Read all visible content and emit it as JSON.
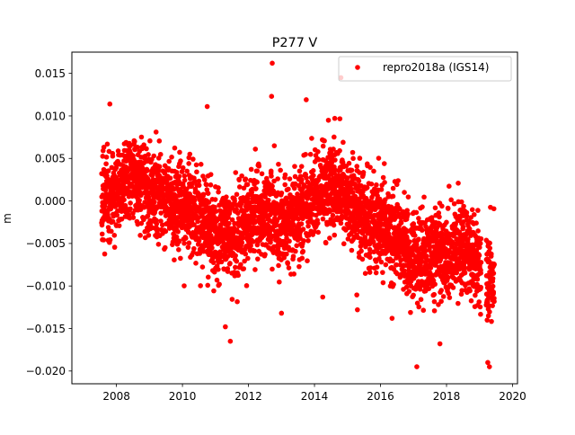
{
  "chart_data": {
    "type": "scatter",
    "title": "P277 V",
    "xlabel": "",
    "ylabel": "m",
    "xlim": [
      2006.65,
      2020.15
    ],
    "ylim": [
      -0.0215,
      0.0175
    ],
    "x_ticks": [
      2008,
      2010,
      2012,
      2014,
      2016,
      2018,
      2020
    ],
    "x_tick_labels": [
      "2008",
      "2010",
      "2012",
      "2014",
      "2016",
      "2018",
      "2020"
    ],
    "y_ticks": [
      0.015,
      0.01,
      0.005,
      0.0,
      -0.005,
      -0.01,
      -0.015,
      -0.02
    ],
    "y_tick_labels": [
      "0.015",
      "0.010",
      "0.005",
      "0.000",
      "−0.005",
      "−0.010",
      "−0.015",
      "−0.020"
    ],
    "grid": false,
    "legend_position": "top-right",
    "series": [
      {
        "name": "repro2018a (IGS14)",
        "color": "#ff0000",
        "marker": "circle",
        "x_start": 2007.55,
        "x_end": 2019.45,
        "n_points": 3900,
        "trend_knots": [
          [
            2007.55,
            0.0005
          ],
          [
            2008.0,
            0.001
          ],
          [
            2008.5,
            0.003
          ],
          [
            2009.0,
            0.0015
          ],
          [
            2009.5,
            0.0
          ],
          [
            2010.0,
            -0.0005
          ],
          [
            2010.5,
            -0.0015
          ],
          [
            2011.0,
            -0.004
          ],
          [
            2011.5,
            -0.004
          ],
          [
            2012.0,
            -0.0025
          ],
          [
            2012.5,
            -0.001
          ],
          [
            2013.0,
            -0.003
          ],
          [
            2013.5,
            -0.002
          ],
          [
            2014.0,
            0.0005
          ],
          [
            2014.5,
            0.002
          ],
          [
            2015.0,
            0.0005
          ],
          [
            2015.5,
            -0.002
          ],
          [
            2016.0,
            -0.003
          ],
          [
            2016.5,
            -0.004
          ],
          [
            2017.0,
            -0.007
          ],
          [
            2017.5,
            -0.0065
          ],
          [
            2018.0,
            -0.0065
          ],
          [
            2018.5,
            -0.0055
          ],
          [
            2019.0,
            -0.0075
          ],
          [
            2019.45,
            -0.009
          ]
        ],
        "noise_std": 0.003,
        "gaps": [
          [
            2019.05,
            2019.2
          ]
        ],
        "outliers": [
          [
            2012.72,
            0.0162
          ],
          [
            2012.7,
            0.0123
          ],
          [
            2014.8,
            0.0145
          ],
          [
            2013.75,
            0.0119
          ],
          [
            2007.8,
            0.0114
          ],
          [
            2010.75,
            0.0111
          ],
          [
            2017.1,
            -0.0195
          ],
          [
            2019.3,
            -0.0195
          ],
          [
            2019.25,
            -0.019
          ],
          [
            2017.8,
            -0.0168
          ],
          [
            2011.45,
            -0.0165
          ],
          [
            2011.3,
            -0.0148
          ],
          [
            2013.0,
            -0.0132
          ],
          [
            2014.25,
            -0.0113
          ],
          [
            2015.3,
            -0.0128
          ],
          [
            2016.35,
            -0.0138
          ]
        ]
      }
    ]
  }
}
